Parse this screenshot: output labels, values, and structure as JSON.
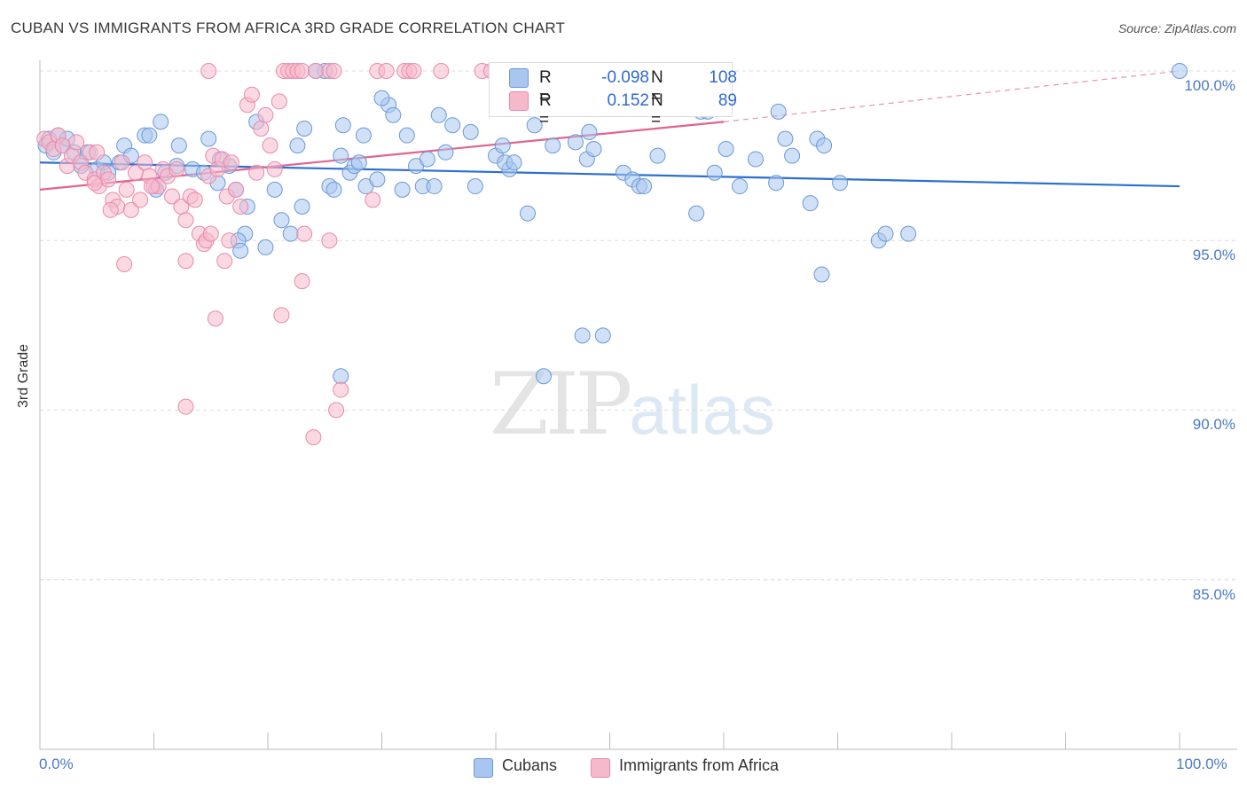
{
  "title": "CUBAN VS IMMIGRANTS FROM AFRICA 3RD GRADE CORRELATION CHART",
  "source": "Source: ZipAtlas.com",
  "watermark": {
    "zip": "ZIP",
    "atlas": "atlas"
  },
  "legend": {
    "rows": [
      {
        "r_label": "R =",
        "r_value": "-0.098",
        "n_label": "N =",
        "n_value": "108",
        "color": "#a9c6ee"
      },
      {
        "r_label": "R =",
        "r_value": "0.152",
        "n_label": "N =",
        "n_value": "89",
        "color": "#f6b9cc"
      }
    ]
  },
  "bottom_legend": [
    {
      "label": "Cubans",
      "color": "#a9c6ee"
    },
    {
      "label": "Immigrants from Africa",
      "color": "#f6b9cc"
    }
  ],
  "chart_data": {
    "type": "scatter",
    "title": "CUBAN VS IMMIGRANTS FROM AFRICA 3RD GRADE CORRELATION CHART",
    "xlabel": "",
    "ylabel": "3rd Grade",
    "xlim": [
      0,
      100
    ],
    "ylim": [
      80,
      100.5
    ],
    "x_tick_labels": [
      "0.0%",
      "100.0%"
    ],
    "y_ticks": [
      100,
      95,
      90,
      85
    ],
    "y_tick_labels": [
      "100.0%",
      "95.0%",
      "90.0%",
      "85.0%"
    ],
    "grid": true,
    "series": [
      {
        "name": "Cubans",
        "color": "#a9c6ee",
        "stroke": "#6a9ad8",
        "trend": {
          "x": [
            0,
            100
          ],
          "y": [
            97.3,
            96.6
          ],
          "color": "#2b6fd0"
        },
        "points": [
          [
            0.5,
            97.8
          ],
          [
            0.8,
            98.0
          ],
          [
            1.2,
            97.6
          ],
          [
            1.6,
            98.1
          ],
          [
            2.0,
            97.8
          ],
          [
            2.4,
            98.0
          ],
          [
            3.0,
            97.6
          ],
          [
            3.6,
            97.2
          ],
          [
            4.2,
            97.6
          ],
          [
            5.0,
            97.1
          ],
          [
            5.6,
            97.3
          ],
          [
            6.0,
            97.0
          ],
          [
            7.0,
            97.3
          ],
          [
            7.4,
            97.8
          ],
          [
            8.0,
            97.5
          ],
          [
            9.2,
            98.1
          ],
          [
            9.6,
            98.1
          ],
          [
            10.6,
            98.5
          ],
          [
            10.2,
            96.5
          ],
          [
            11.0,
            97.0
          ],
          [
            12.0,
            97.2
          ],
          [
            12.2,
            97.8
          ],
          [
            13.4,
            97.1
          ],
          [
            14.4,
            97.0
          ],
          [
            14.8,
            98.0
          ],
          [
            15.6,
            96.7
          ],
          [
            15.8,
            97.4
          ],
          [
            16.6,
            97.2
          ],
          [
            17.2,
            96.5
          ],
          [
            18.2,
            96.0
          ],
          [
            18.0,
            95.2
          ],
          [
            17.4,
            95.0
          ],
          [
            17.6,
            94.7
          ],
          [
            19.0,
            98.5
          ],
          [
            19.8,
            94.8
          ],
          [
            20.6,
            96.5
          ],
          [
            21.2,
            95.6
          ],
          [
            22.0,
            95.2
          ],
          [
            22.6,
            97.8
          ],
          [
            23.0,
            96.0
          ],
          [
            23.2,
            98.3
          ],
          [
            25.0,
            100.0
          ],
          [
            24.2,
            100.0
          ],
          [
            25.4,
            96.6
          ],
          [
            25.8,
            96.5
          ],
          [
            26.4,
            97.5
          ],
          [
            26.6,
            98.4
          ],
          [
            27.2,
            97.0
          ],
          [
            27.6,
            97.2
          ],
          [
            28.0,
            97.3
          ],
          [
            28.4,
            98.1
          ],
          [
            28.6,
            96.6
          ],
          [
            29.6,
            96.8
          ],
          [
            30.6,
            99.0
          ],
          [
            30.0,
            99.2
          ],
          [
            31.0,
            98.7
          ],
          [
            31.8,
            96.5
          ],
          [
            32.2,
            98.1
          ],
          [
            33.0,
            97.2
          ],
          [
            33.6,
            96.6
          ],
          [
            34.0,
            97.4
          ],
          [
            34.6,
            96.6
          ],
          [
            35.0,
            98.7
          ],
          [
            35.6,
            97.6
          ],
          [
            36.2,
            98.4
          ],
          [
            37.8,
            98.2
          ],
          [
            38.2,
            96.6
          ],
          [
            40.0,
            97.5
          ],
          [
            40.6,
            97.8
          ],
          [
            41.2,
            97.1
          ],
          [
            40.8,
            97.3
          ],
          [
            41.6,
            97.3
          ],
          [
            42.8,
            95.8
          ],
          [
            43.4,
            98.4
          ],
          [
            45.0,
            97.8
          ],
          [
            47.0,
            97.9
          ],
          [
            48.0,
            97.4
          ],
          [
            48.6,
            97.7
          ],
          [
            48.2,
            98.2
          ],
          [
            51.2,
            97.0
          ],
          [
            52.0,
            96.8
          ],
          [
            52.6,
            96.6
          ],
          [
            53.0,
            96.6
          ],
          [
            54.2,
            97.5
          ],
          [
            57.6,
            95.8
          ],
          [
            58.0,
            98.8
          ],
          [
            58.6,
            98.8
          ],
          [
            59.2,
            97.0
          ],
          [
            60.2,
            97.7
          ],
          [
            61.4,
            96.6
          ],
          [
            62.8,
            97.4
          ],
          [
            64.8,
            98.8
          ],
          [
            65.4,
            98.0
          ],
          [
            64.6,
            96.7
          ],
          [
            66.0,
            97.5
          ],
          [
            67.6,
            96.1
          ],
          [
            68.2,
            98.0
          ],
          [
            68.8,
            97.8
          ],
          [
            70.2,
            96.7
          ],
          [
            73.6,
            95.0
          ],
          [
            74.2,
            95.2
          ],
          [
            76.2,
            95.2
          ],
          [
            68.6,
            94.0
          ],
          [
            49.4,
            92.2
          ],
          [
            44.2,
            91.0
          ],
          [
            26.4,
            91.0
          ],
          [
            47.6,
            92.2
          ],
          [
            100,
            100.0
          ]
        ]
      },
      {
        "name": "Immigrants from Africa",
        "color": "#f6b9cc",
        "stroke": "#e98aaa",
        "trend": {
          "x": [
            0,
            60
          ],
          "y": [
            96.5,
            98.5
          ],
          "color": "#e0648f",
          "dashed_extension": {
            "x": [
              60,
              100
            ],
            "y": [
              98.5,
              100.0
            ]
          }
        },
        "points": [
          [
            0.4,
            98.0
          ],
          [
            0.8,
            97.9
          ],
          [
            1.2,
            97.7
          ],
          [
            1.6,
            98.1
          ],
          [
            2.0,
            97.8
          ],
          [
            2.4,
            97.2
          ],
          [
            2.8,
            97.5
          ],
          [
            3.2,
            97.9
          ],
          [
            3.6,
            97.3
          ],
          [
            4.0,
            97.0
          ],
          [
            4.4,
            97.6
          ],
          [
            4.8,
            96.8
          ],
          [
            5.2,
            96.6
          ],
          [
            5.6,
            97.0
          ],
          [
            6.0,
            96.8
          ],
          [
            6.4,
            96.2
          ],
          [
            6.8,
            96.0
          ],
          [
            7.2,
            97.3
          ],
          [
            7.6,
            96.5
          ],
          [
            8.0,
            95.9
          ],
          [
            8.4,
            97.0
          ],
          [
            8.8,
            96.2
          ],
          [
            9.2,
            97.3
          ],
          [
            9.6,
            96.9
          ],
          [
            10.0,
            96.6
          ],
          [
            10.4,
            96.6
          ],
          [
            10.8,
            97.1
          ],
          [
            11.2,
            96.9
          ],
          [
            11.6,
            96.3
          ],
          [
            12.0,
            97.1
          ],
          [
            12.4,
            96.0
          ],
          [
            12.8,
            95.6
          ],
          [
            13.2,
            96.3
          ],
          [
            13.6,
            96.2
          ],
          [
            14.0,
            95.2
          ],
          [
            14.4,
            94.9
          ],
          [
            14.8,
            96.9
          ],
          [
            15.2,
            97.5
          ],
          [
            15.6,
            97.1
          ],
          [
            16.0,
            97.4
          ],
          [
            16.4,
            96.3
          ],
          [
            16.8,
            97.3
          ],
          [
            17.2,
            96.5
          ],
          [
            17.6,
            96.0
          ],
          [
            18.2,
            99.0
          ],
          [
            18.6,
            99.3
          ],
          [
            19.0,
            97.0
          ],
          [
            19.4,
            98.3
          ],
          [
            19.8,
            98.7
          ],
          [
            20.2,
            97.8
          ],
          [
            20.6,
            97.1
          ],
          [
            21.0,
            99.1
          ],
          [
            21.4,
            100.0
          ],
          [
            21.8,
            100.0
          ],
          [
            22.2,
            100.0
          ],
          [
            22.6,
            100.0
          ],
          [
            23.0,
            100.0
          ],
          [
            24.2,
            100.0
          ],
          [
            25.4,
            100.0
          ],
          [
            25.8,
            100.0
          ],
          [
            29.6,
            100.0
          ],
          [
            30.4,
            100.0
          ],
          [
            32.0,
            100.0
          ],
          [
            32.4,
            100.0
          ],
          [
            32.8,
            100.0
          ],
          [
            35.2,
            100.0
          ],
          [
            38.8,
            100.0
          ],
          [
            39.6,
            100.0
          ],
          [
            14.8,
            100.0
          ],
          [
            4.8,
            96.7
          ],
          [
            6.2,
            95.9
          ],
          [
            7.4,
            94.3
          ],
          [
            9.8,
            96.6
          ],
          [
            12.8,
            94.4
          ],
          [
            14.6,
            95.0
          ],
          [
            15.0,
            95.2
          ],
          [
            15.4,
            92.7
          ],
          [
            16.2,
            94.4
          ],
          [
            16.6,
            95.0
          ],
          [
            21.2,
            92.8
          ],
          [
            23.2,
            95.2
          ],
          [
            23.0,
            93.8
          ],
          [
            25.4,
            95.0
          ],
          [
            26.4,
            90.6
          ],
          [
            26.0,
            90.0
          ],
          [
            24.0,
            89.2
          ],
          [
            12.8,
            90.1
          ],
          [
            29.2,
            96.2
          ],
          [
            5.0,
            97.6
          ]
        ]
      }
    ]
  }
}
